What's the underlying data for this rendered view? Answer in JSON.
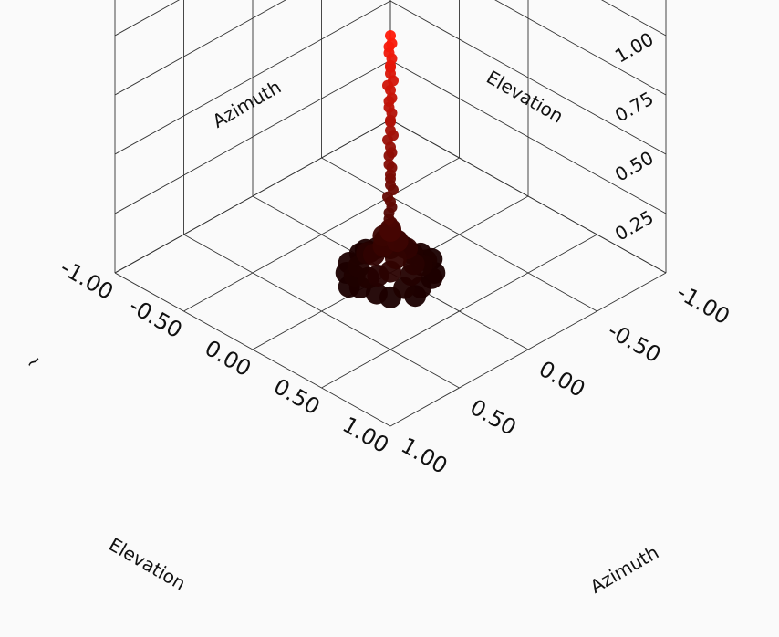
{
  "chart_data": {
    "type": "scatter",
    "x_axis": {
      "label": "Elevation",
      "range": [
        -1.0,
        1.0
      ],
      "ticks": [
        "-1.00",
        "-0.50",
        "0.00",
        "0.50",
        "1.00"
      ]
    },
    "y_axis": {
      "label": "Azimuth",
      "range": [
        -1.0,
        1.0
      ],
      "ticks": [
        "-1.00",
        "-0.50",
        "0.00",
        "0.50",
        "1.00"
      ]
    },
    "z_axis": {
      "label": "~",
      "range": [
        0.0,
        1.0
      ],
      "ticks": [
        "0.25",
        "0.50",
        "0.75",
        "1.00"
      ]
    },
    "back_wall_labels": {
      "left": "Azimuth",
      "right": "Elevation"
    },
    "grid": true,
    "series": [
      {
        "color_low": "#1a0000",
        "color_high": "#ff1a0a",
        "points": [
          [
            0.0,
            0.0,
            1.0
          ],
          [
            0.01,
            0.0,
            0.97
          ],
          [
            -0.01,
            0.0,
            0.95
          ],
          [
            0.0,
            0.01,
            0.93
          ],
          [
            0.0,
            -0.01,
            0.9
          ],
          [
            0.01,
            0.01,
            0.88
          ],
          [
            -0.01,
            -0.01,
            0.86
          ],
          [
            0.0,
            0.0,
            0.84
          ],
          [
            0.01,
            -0.01,
            0.81
          ],
          [
            -0.01,
            0.01,
            0.79
          ],
          [
            0.0,
            0.0,
            0.77
          ],
          [
            0.01,
            0.0,
            0.74
          ],
          [
            -0.01,
            0.0,
            0.72
          ],
          [
            0.0,
            0.01,
            0.7
          ],
          [
            0.0,
            -0.01,
            0.67
          ],
          [
            0.01,
            0.01,
            0.65
          ],
          [
            -0.01,
            -0.01,
            0.63
          ],
          [
            0.0,
            0.0,
            0.6
          ],
          [
            0.01,
            -0.01,
            0.58
          ],
          [
            -0.01,
            0.01,
            0.56
          ],
          [
            0.0,
            0.0,
            0.53
          ],
          [
            0.01,
            0.0,
            0.51
          ],
          [
            -0.01,
            0.0,
            0.49
          ],
          [
            0.0,
            0.01,
            0.46
          ],
          [
            0.0,
            -0.01,
            0.44
          ],
          [
            0.01,
            0.01,
            0.42
          ],
          [
            -0.01,
            -0.01,
            0.39
          ],
          [
            0.0,
            0.0,
            0.37
          ],
          [
            0.01,
            -0.01,
            0.35
          ],
          [
            -0.01,
            0.01,
            0.32
          ],
          [
            0.0,
            0.0,
            0.3
          ],
          [
            0.01,
            0.0,
            0.28
          ],
          [
            -0.01,
            0.0,
            0.25
          ],
          [
            0.0,
            0.01,
            0.23
          ],
          [
            0.0,
            -0.01,
            0.21
          ],
          [
            0.02,
            0.02,
            0.19
          ],
          [
            -0.02,
            -0.02,
            0.17
          ],
          [
            0.05,
            0.0,
            0.15
          ],
          [
            -0.05,
            0.0,
            0.14
          ],
          [
            0.0,
            0.05,
            0.13
          ],
          [
            0.0,
            -0.05,
            0.12
          ],
          [
            0.08,
            0.04,
            0.1
          ],
          [
            -0.08,
            -0.04,
            0.1
          ],
          [
            0.04,
            -0.08,
            0.09
          ],
          [
            -0.04,
            0.08,
            0.09
          ],
          [
            0.1,
            0.1,
            0.07
          ],
          [
            -0.1,
            -0.1,
            0.07
          ],
          [
            0.12,
            -0.05,
            0.06
          ],
          [
            -0.12,
            0.05,
            0.06
          ],
          [
            0.05,
            0.14,
            0.05
          ],
          [
            -0.05,
            -0.14,
            0.05
          ],
          [
            0.15,
            0.0,
            0.04
          ],
          [
            -0.15,
            0.0,
            0.04
          ],
          [
            0.0,
            0.16,
            0.03
          ],
          [
            0.0,
            -0.16,
            0.03
          ],
          [
            0.11,
            -0.12,
            0.03
          ],
          [
            -0.11,
            0.12,
            0.03
          ],
          [
            0.18,
            0.08,
            0.02
          ],
          [
            -0.18,
            -0.08,
            0.02
          ],
          [
            0.08,
            -0.18,
            0.02
          ],
          [
            -0.08,
            0.18,
            0.02
          ],
          [
            0.2,
            -0.1,
            0.01
          ],
          [
            -0.2,
            0.1,
            0.01
          ],
          [
            0.1,
            0.2,
            0.01
          ],
          [
            -0.1,
            -0.2,
            0.01
          ],
          [
            0.22,
            0.0,
            0.01
          ],
          [
            -0.22,
            0.0,
            0.01
          ],
          [
            0.0,
            0.22,
            0.01
          ],
          [
            0.0,
            -0.22,
            0.01
          ],
          [
            0.16,
            0.16,
            0.0
          ],
          [
            -0.16,
            -0.16,
            0.0
          ],
          [
            0.16,
            -0.16,
            0.0
          ],
          [
            -0.16,
            0.16,
            0.0
          ],
          [
            0.24,
            0.06,
            0.0
          ],
          [
            -0.24,
            -0.06,
            0.0
          ],
          [
            0.06,
            -0.24,
            0.0
          ],
          [
            -0.06,
            0.24,
            0.0
          ]
        ]
      }
    ]
  }
}
